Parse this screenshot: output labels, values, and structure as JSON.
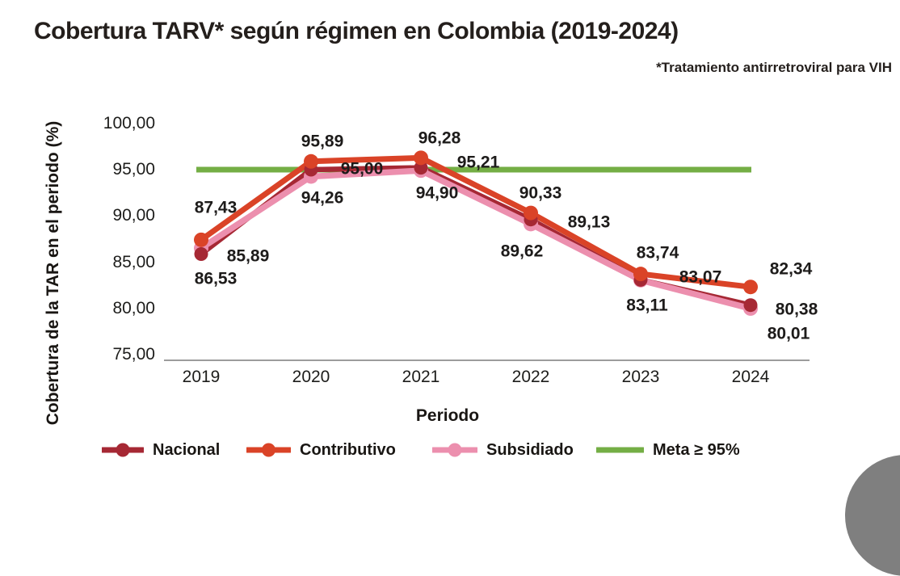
{
  "header": {
    "title": "Cobertura TARV* según régimen en Colombia (2019-2024)",
    "footnote": "*Tratamiento antirretroviral para VIH"
  },
  "chart_data": {
    "type": "line",
    "title": "Cobertura TARV* según régimen en Colombia (2019-2024)",
    "subtitle": "*Tratamiento antirretroviral para VIH",
    "xlabel": "Periodo",
    "ylabel": "Cobertura de la TAR en el periodo (%)",
    "categories": [
      "2019",
      "2020",
      "2021",
      "2022",
      "2023",
      "2024"
    ],
    "ylim": [
      75,
      100
    ],
    "yticks": {
      "values": [
        100,
        95,
        90,
        85,
        80,
        75
      ],
      "labels": [
        "100,00",
        "95,00",
        "90,00",
        "85,00",
        "80,00",
        "75,00"
      ]
    },
    "grid": "off",
    "legend_position": "bottom",
    "series": [
      {
        "name": "Nacional",
        "color": "#A62834",
        "values": [
          85.89,
          95.0,
          95.21,
          89.62,
          83.11,
          80.38
        ],
        "value_labels": [
          "85,89",
          "95,00",
          "95,21",
          "89,62",
          "83,11",
          "80,38"
        ]
      },
      {
        "name": "Contributivo",
        "color": "#DA4327",
        "values": [
          87.43,
          95.89,
          96.28,
          90.33,
          83.74,
          82.34
        ],
        "value_labels": [
          "87,43",
          "95,89",
          "96,28",
          "90,33",
          "83,74",
          "82,34"
        ]
      },
      {
        "name": "Subsidiado",
        "color": "#EC8FAE",
        "values": [
          86.53,
          94.26,
          94.9,
          89.13,
          83.07,
          80.01
        ],
        "value_labels": [
          "86,53",
          "94,26",
          "94,90",
          "89,13",
          "83,07",
          "80,01"
        ]
      }
    ],
    "reference_line": {
      "label": "Meta ≥ 95%",
      "value": 95,
      "color": "#74AE45"
    },
    "colors": {
      "text": "#1d1b1a",
      "axis_line": "#7b7b7b"
    }
  }
}
